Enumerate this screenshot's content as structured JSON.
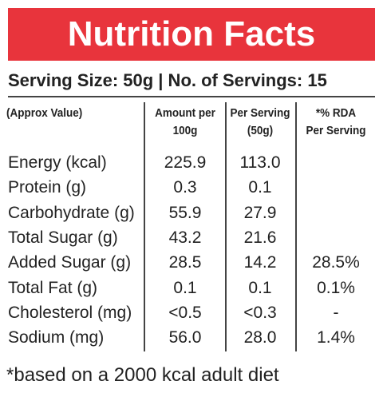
{
  "header": {
    "title": "Nutrition Facts",
    "serving": "Serving Size: 50g  |  No. of Servings: 15"
  },
  "table": {
    "columns": [
      [
        "(Approx Value)"
      ],
      [
        "Amount per",
        "100g"
      ],
      [
        "Per Serving",
        "(50g)"
      ],
      [
        "*% RDA",
        "Per Serving"
      ]
    ],
    "rows": [
      [
        "Energy (kcal)",
        "225.9",
        "113.0"
      ],
      [
        "Protein (g)",
        "0.3",
        "0.1"
      ],
      [
        "Carbohydrate (g)",
        "55.9",
        "27.9"
      ],
      [
        "Total Sugar (g)",
        "43.2",
        "21.6"
      ],
      [
        "Added Sugar (g)",
        "28.5",
        "14.2",
        "28.5%"
      ],
      [
        "Total Fat (g)",
        "0.1",
        "0.1",
        "0.1%"
      ],
      [
        "Cholesterol (mg)",
        "<0.5",
        "<0.3",
        "-"
      ],
      [
        "Sodium (mg)",
        "56.0",
        "28.0",
        "1.4%"
      ]
    ]
  },
  "footer": "*based on a 2000 kcal adult diet"
}
